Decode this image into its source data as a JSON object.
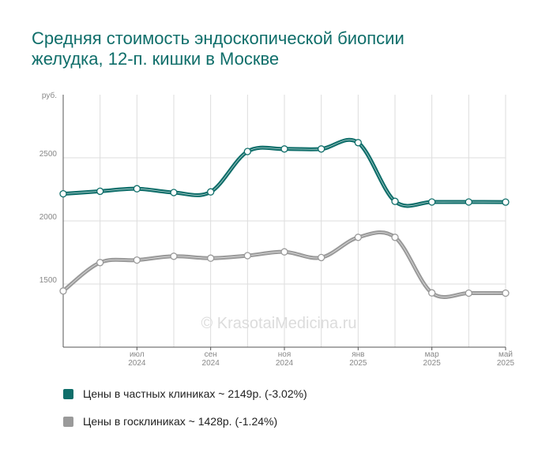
{
  "title_lines": [
    "Средняя стоимость эндоскопической биопсии",
    "желудка, 12-п. кишки в Москве"
  ],
  "watermark": "© KrasotaiMedicina.ru",
  "chart_data": {
    "type": "line",
    "ylabel": "руб.",
    "ylim": [
      1000,
      3000
    ],
    "yticks": [
      1500,
      2000,
      2500
    ],
    "grid": true,
    "x": [
      "2024-05",
      "2024-06",
      "2024-07",
      "2024-08",
      "2024-09",
      "2024-10",
      "2024-11",
      "2024-12",
      "2025-01",
      "2025-02",
      "2025-03",
      "2025-04",
      "2025-05"
    ],
    "xtick_labels": [
      {
        "x": "2024-07",
        "month": "июл",
        "year": "2024"
      },
      {
        "x": "2024-09",
        "month": "сен",
        "year": "2024"
      },
      {
        "x": "2024-11",
        "month": "ноя",
        "year": "2024"
      },
      {
        "x": "2025-01",
        "month": "янв",
        "year": "2025"
      },
      {
        "x": "2025-03",
        "month": "мар",
        "year": "2025"
      },
      {
        "x": "2025-05",
        "month": "май",
        "year": "2025"
      }
    ],
    "series": [
      {
        "name": "Цены в частных клиниках ~ 2149р. (-3.02%)",
        "color": "#0f6e6a",
        "values": [
          2215,
          2235,
          2255,
          2225,
          2230,
          2550,
          2570,
          2570,
          2620,
          2155,
          2150,
          2150,
          2149
        ]
      },
      {
        "name": "Цены в госклиниках ~ 1428р. (-1.24%)",
        "color": "#9a9a9a",
        "values": [
          1445,
          1670,
          1690,
          1720,
          1705,
          1725,
          1755,
          1710,
          1870,
          1870,
          1430,
          1428,
          1428
        ]
      }
    ]
  },
  "legend_label_private": "Цены в частных клиниках ~ 2149р. (-3.02%)",
  "legend_label_public": "Цены в госклиниках ~ 1428р. (-1.24%)",
  "legend_color_private": "#0f6e6a",
  "legend_color_public": "#9a9a9a"
}
